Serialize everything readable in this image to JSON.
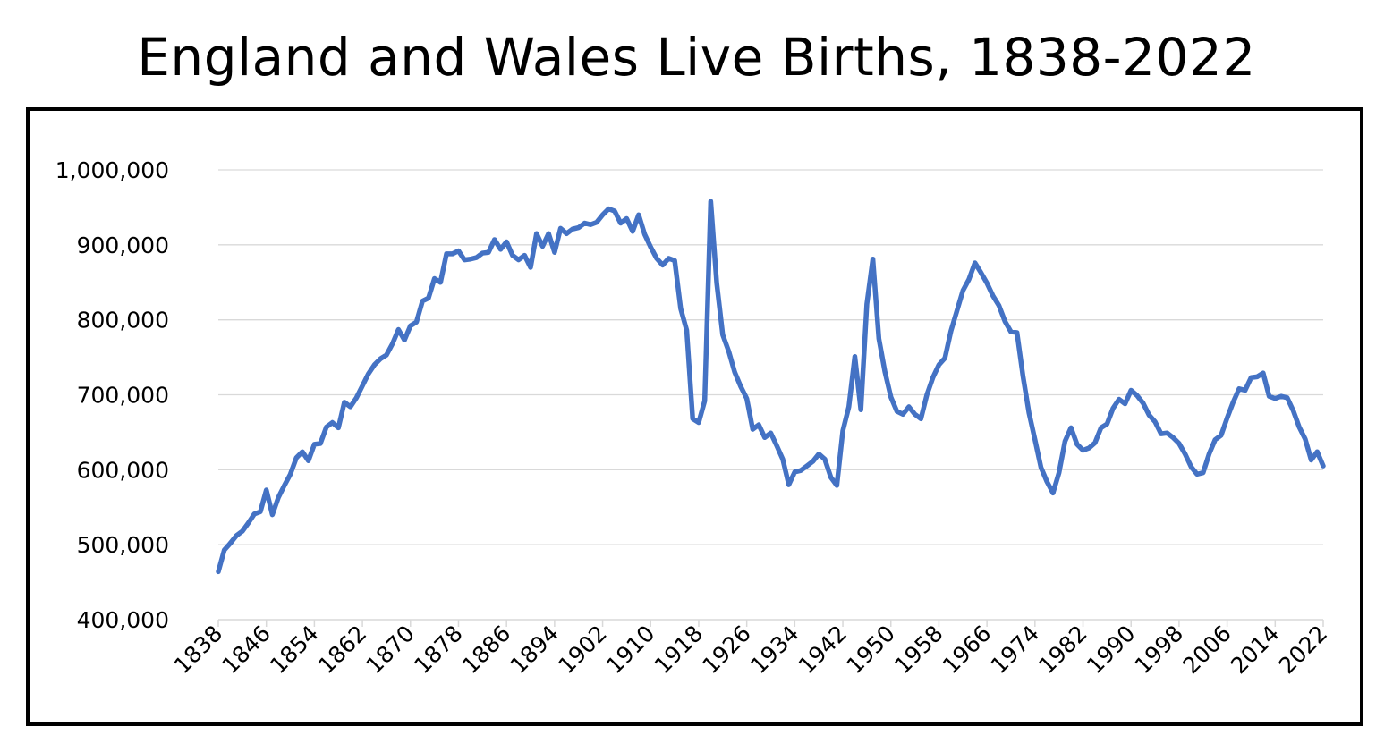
{
  "chart_data": {
    "type": "line",
    "title": "England and Wales Live Births, 1838-2022",
    "xlabel": "",
    "ylabel": "",
    "xlim": [
      1838,
      2022
    ],
    "ylim": [
      400000,
      1000000
    ],
    "yticks": [
      400000,
      500000,
      600000,
      700000,
      800000,
      900000,
      1000000
    ],
    "ytick_labels": [
      "400,000",
      "500,000",
      "600,000",
      "700,000",
      "800,000",
      "900,000",
      "1,000,000"
    ],
    "xtick_labels": [
      "1838",
      "1846",
      "1854",
      "1862",
      "1870",
      "1878",
      "1886",
      "1894",
      "1902",
      "1910",
      "1918",
      "1926",
      "1934",
      "1942",
      "1950",
      "1958",
      "1966",
      "1974",
      "1982",
      "1990",
      "1998",
      "2006",
      "2014",
      "2022"
    ],
    "grid": true,
    "legend": "none",
    "series": [
      {
        "color": "#4472C4",
        "x": [
          1838,
          1839,
          1840,
          1841,
          1842,
          1843,
          1844,
          1845,
          1846,
          1847,
          1848,
          1849,
          1850,
          1851,
          1852,
          1853,
          1854,
          1855,
          1856,
          1857,
          1858,
          1859,
          1860,
          1861,
          1862,
          1863,
          1864,
          1865,
          1866,
          1867,
          1868,
          1869,
          1870,
          1871,
          1872,
          1873,
          1874,
          1875,
          1876,
          1877,
          1878,
          1879,
          1880,
          1881,
          1882,
          1883,
          1884,
          1885,
          1886,
          1887,
          1888,
          1889,
          1890,
          1891,
          1892,
          1893,
          1894,
          1895,
          1896,
          1897,
          1898,
          1899,
          1900,
          1901,
          1902,
          1903,
          1904,
          1905,
          1906,
          1907,
          1908,
          1909,
          1910,
          1911,
          1912,
          1913,
          1914,
          1915,
          1916,
          1917,
          1918,
          1919,
          1920,
          1921,
          1922,
          1923,
          1924,
          1925,
          1926,
          1927,
          1928,
          1929,
          1930,
          1931,
          1932,
          1933,
          1934,
          1935,
          1936,
          1937,
          1938,
          1939,
          1940,
          1941,
          1942,
          1943,
          1944,
          1945,
          1946,
          1947,
          1948,
          1949,
          1950,
          1951,
          1952,
          1953,
          1954,
          1955,
          1956,
          1957,
          1958,
          1959,
          1960,
          1961,
          1962,
          1963,
          1964,
          1965,
          1966,
          1967,
          1968,
          1969,
          1970,
          1971,
          1972,
          1973,
          1974,
          1975,
          1976,
          1977,
          1978,
          1979,
          1980,
          1981,
          1982,
          1983,
          1984,
          1985,
          1986,
          1987,
          1988,
          1989,
          1990,
          1991,
          1992,
          1993,
          1994,
          1995,
          1996,
          1997,
          1998,
          1999,
          2000,
          2001,
          2002,
          2003,
          2004,
          2005,
          2006,
          2007,
          2008,
          2009,
          2010,
          2011,
          2012,
          2013,
          2014,
          2015,
          2016,
          2017,
          2018,
          2019,
          2020,
          2021,
          2022
        ],
        "y": [
          464000,
          493000,
          502000,
          512000,
          518000,
          529000,
          541000,
          544000,
          573000,
          540000,
          563000,
          579000,
          594000,
          616000,
          624000,
          612000,
          634000,
          635000,
          657000,
          663000,
          656000,
          690000,
          684000,
          696000,
          712000,
          728000,
          740000,
          748000,
          753000,
          768000,
          787000,
          773000,
          792000,
          797000,
          825000,
          829000,
          855000,
          850000,
          888000,
          888000,
          892000,
          880000,
          881000,
          883000,
          889000,
          890000,
          907000,
          894000,
          904000,
          886000,
          880000,
          886000,
          870000,
          915000,
          898000,
          915000,
          890000,
          922000,
          915000,
          921000,
          923000,
          929000,
          927000,
          930000,
          940000,
          948000,
          945000,
          929000,
          935000,
          918000,
          940000,
          914000,
          897000,
          882000,
          873000,
          882000,
          879000,
          815000,
          786000,
          668000,
          663000,
          692000,
          958000,
          849000,
          780000,
          758000,
          730000,
          711000,
          695000,
          654000,
          660000,
          643000,
          649000,
          632000,
          614000,
          580000,
          597000,
          599000,
          605000,
          611000,
          621000,
          614000,
          590000,
          579000,
          652000,
          684000,
          751000,
          680000,
          821000,
          881000,
          775000,
          731000,
          697000,
          678000,
          674000,
          684000,
          674000,
          668000,
          700000,
          723000,
          740000,
          749000,
          785000,
          812000,
          839000,
          854000,
          876000,
          863000,
          849000,
          832000,
          819000,
          798000,
          784000,
          783000,
          725000,
          676000,
          640000,
          603000,
          584000,
          569000,
          596000,
          638000,
          656000,
          634000,
          626000,
          629000,
          636000,
          656000,
          661000,
          682000,
          694000,
          688000,
          706000,
          699000,
          689000,
          673000,
          664000,
          648000,
          649000,
          643000,
          635000,
          621000,
          604000,
          594000,
          596000,
          621000,
          640000,
          646000,
          669000,
          690000,
          708000,
          706000,
          723000,
          724000,
          729000,
          698000,
          695000,
          698000,
          696000,
          679000,
          657000,
          641000,
          613000,
          624000,
          605000
        ]
      }
    ]
  }
}
